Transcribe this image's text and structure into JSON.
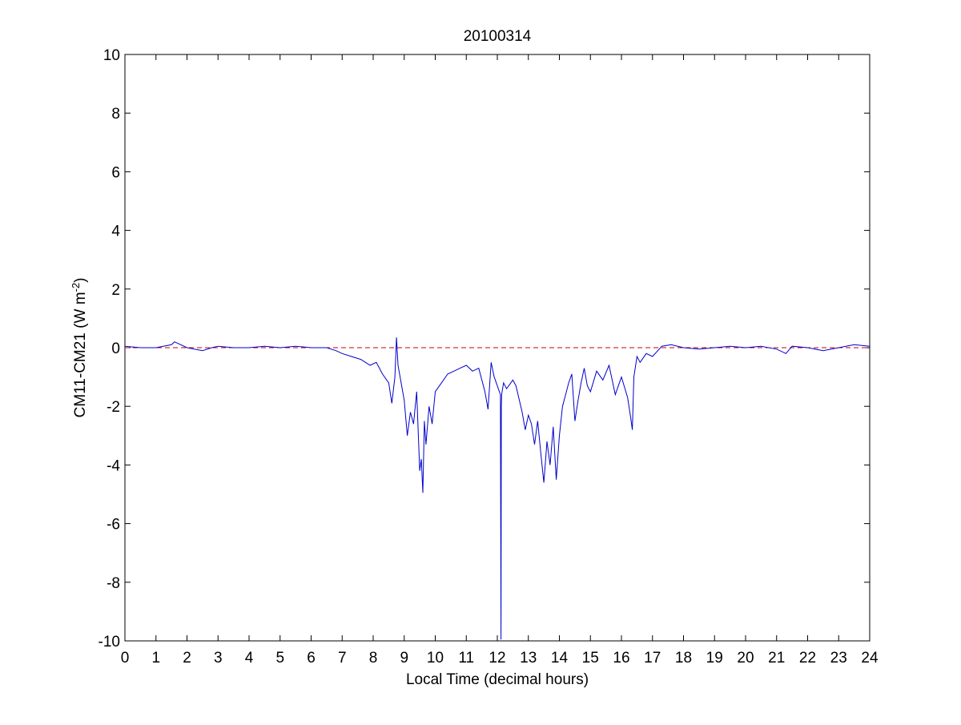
{
  "chart_data": {
    "type": "line",
    "title": "20100314",
    "xlabel": "Local Time (decimal hours)",
    "ylabel_parts": {
      "main": "CM11-CM21 (W m",
      "superscript": "-2",
      "close": ")"
    },
    "xlim": [
      0,
      24
    ],
    "ylim": [
      -10,
      10
    ],
    "xticks": [
      0,
      1,
      2,
      3,
      4,
      5,
      6,
      7,
      8,
      9,
      10,
      11,
      12,
      13,
      14,
      15,
      16,
      17,
      18,
      19,
      20,
      21,
      22,
      23,
      24
    ],
    "yticks": [
      -10,
      -8,
      -6,
      -4,
      -2,
      0,
      2,
      4,
      6,
      8,
      10
    ],
    "grid": false,
    "reference_line": {
      "y": 0,
      "style": "dashed",
      "color": "#cc0000"
    },
    "series": [
      {
        "color": "#0000cc",
        "x": [
          0,
          0.5,
          1.0,
          1.5,
          1.6,
          2.0,
          2.5,
          2.8,
          3.0,
          3.5,
          4.0,
          4.5,
          5.0,
          5.5,
          6.0,
          6.5,
          6.8,
          7.0,
          7.3,
          7.6,
          7.9,
          8.1,
          8.3,
          8.5,
          8.6,
          8.7,
          8.75,
          8.8,
          8.9,
          9.0,
          9.1,
          9.2,
          9.3,
          9.4,
          9.5,
          9.55,
          9.6,
          9.65,
          9.7,
          9.8,
          9.9,
          10.0,
          10.2,
          10.4,
          10.6,
          10.8,
          11.0,
          11.2,
          11.4,
          11.6,
          11.7,
          11.8,
          11.9,
          12.0,
          12.1,
          12.12,
          12.13,
          12.14,
          12.2,
          12.3,
          12.5,
          12.6,
          12.8,
          12.9,
          13.0,
          13.1,
          13.2,
          13.3,
          13.4,
          13.5,
          13.6,
          13.7,
          13.8,
          13.9,
          14.0,
          14.1,
          14.2,
          14.3,
          14.4,
          14.5,
          14.6,
          14.7,
          14.8,
          14.9,
          15.0,
          15.2,
          15.4,
          15.6,
          15.8,
          16.0,
          16.2,
          16.3,
          16.35,
          16.4,
          16.5,
          16.6,
          16.8,
          17.0,
          17.3,
          17.6,
          18.0,
          18.5,
          19.0,
          19.5,
          20.0,
          20.5,
          21.0,
          21.3,
          21.5,
          22.0,
          22.5,
          23.0,
          23.5,
          24.0
        ],
        "y": [
          0.05,
          0.0,
          0.0,
          0.1,
          0.2,
          0.0,
          -0.1,
          0.0,
          0.05,
          0.0,
          0.0,
          0.05,
          0.0,
          0.05,
          0.0,
          0.0,
          -0.1,
          -0.2,
          -0.3,
          -0.4,
          -0.6,
          -0.5,
          -0.9,
          -1.2,
          -1.9,
          -1.0,
          0.35,
          -0.6,
          -1.2,
          -1.8,
          -3.0,
          -2.2,
          -2.6,
          -1.5,
          -4.2,
          -3.8,
          -4.95,
          -2.5,
          -3.3,
          -2.0,
          -2.6,
          -1.5,
          -1.2,
          -0.9,
          -0.8,
          -0.7,
          -0.6,
          -0.8,
          -0.7,
          -1.5,
          -2.1,
          -0.5,
          -1.0,
          -1.3,
          -1.6,
          -9.95,
          -2.0,
          -1.6,
          -1.2,
          -1.4,
          -1.1,
          -1.3,
          -2.2,
          -2.8,
          -2.3,
          -2.6,
          -3.3,
          -2.5,
          -3.6,
          -4.6,
          -3.2,
          -4.0,
          -2.7,
          -4.5,
          -3.0,
          -2.0,
          -1.6,
          -1.2,
          -0.9,
          -2.5,
          -1.8,
          -1.2,
          -0.7,
          -1.3,
          -1.5,
          -0.8,
          -1.1,
          -0.6,
          -1.6,
          -1.0,
          -1.7,
          -2.4,
          -2.8,
          -1.0,
          -0.3,
          -0.5,
          -0.2,
          -0.3,
          0.05,
          0.1,
          0.0,
          -0.05,
          0.0,
          0.05,
          0.0,
          0.05,
          -0.05,
          -0.2,
          0.05,
          0.0,
          -0.1,
          0.0,
          0.1,
          0.05
        ]
      }
    ]
  }
}
